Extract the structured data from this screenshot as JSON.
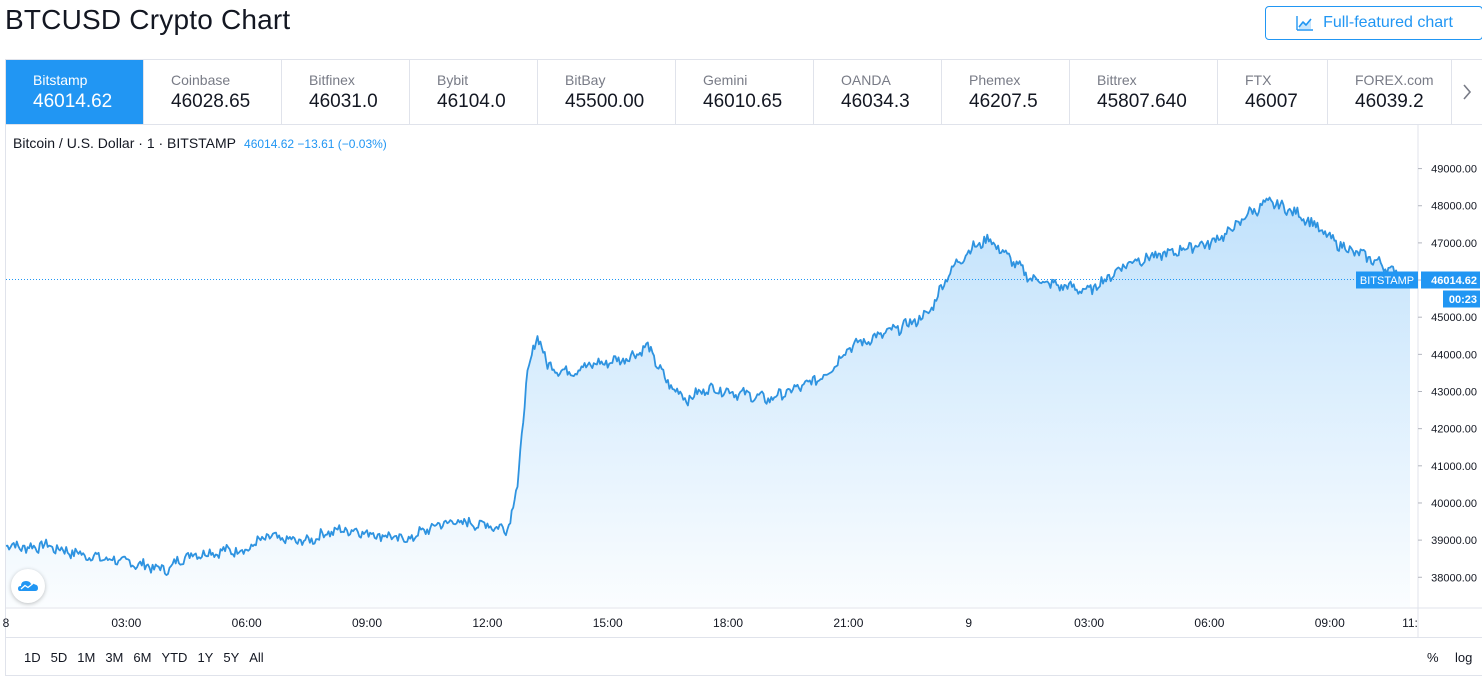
{
  "page": {
    "title": "BTCUSD Crypto Chart",
    "full_featured_label": "Full-featured chart"
  },
  "exchanges": [
    {
      "name": "Bitstamp",
      "price": "46014.62",
      "active": true
    },
    {
      "name": "Coinbase",
      "price": "46028.65"
    },
    {
      "name": "Bitfinex",
      "price": "46031.0"
    },
    {
      "name": "Bybit",
      "price": "46104.0"
    },
    {
      "name": "BitBay",
      "price": "45500.00"
    },
    {
      "name": "Gemini",
      "price": "46010.65"
    },
    {
      "name": "OANDA",
      "price": "46034.3"
    },
    {
      "name": "Phemex",
      "price": "46207.5"
    },
    {
      "name": "Bittrex",
      "price": "45807.640"
    },
    {
      "name": "FTX",
      "price": "46007"
    },
    {
      "name": "FOREX.com",
      "price": "46039.2"
    }
  ],
  "legend": {
    "symbol": "Bitcoin / U.S. Dollar · 1 · BITSTAMP",
    "values": "46014.62  −13.61 (−0.03%)"
  },
  "price_tag": {
    "exchange": "BITSTAMP",
    "price": "46014.62",
    "countdown": "00:23"
  },
  "range_buttons": [
    "1D",
    "5D",
    "1M",
    "3M",
    "6M",
    "YTD",
    "1Y",
    "5Y",
    "All"
  ],
  "scale_buttons": {
    "percent": "%",
    "log": "log"
  },
  "colors": {
    "accent": "#2196f3",
    "line": "#2e93e0",
    "grid": "#e0e3eb",
    "text": "#131722",
    "muted": "#787b86"
  },
  "icons": {
    "chart": "chart-line-icon",
    "next": "chevron-right-icon",
    "logo": "tradingview-cloud-icon"
  },
  "chart_data": {
    "type": "area",
    "xlabel": "",
    "ylabel": "",
    "x_ticks": [
      "8",
      "03:00",
      "06:00",
      "09:00",
      "12:00",
      "15:00",
      "18:00",
      "21:00",
      "9",
      "03:00",
      "06:00",
      "09:00",
      "11:"
    ],
    "y_ticks": [
      "38000.00",
      "39000.00",
      "40000.00",
      "41000.00",
      "42000.00",
      "43000.00",
      "44000.00",
      "45000.00",
      "46000.00",
      "47000.00",
      "48000.00",
      "49000.00"
    ],
    "ylim": [
      37200,
      49500
    ],
    "grid": false,
    "series": [
      {
        "x": [
          "8 00:00",
          "8 00:30",
          "8 01:00",
          "8 01:30",
          "8 02:00",
          "8 02:30",
          "8 03:00",
          "8 03:30",
          "8 04:00",
          "8 04:30",
          "8 05:00",
          "8 05:30",
          "8 06:00",
          "8 06:30",
          "8 07:00",
          "8 07:30",
          "8 08:00",
          "8 08:30",
          "8 09:00",
          "8 09:30",
          "8 10:00",
          "8 10:30",
          "8 11:00",
          "8 11:30",
          "8 12:00",
          "8 12:30",
          "8 12:45",
          "8 13:00",
          "8 13:15",
          "8 13:30",
          "8 14:00",
          "8 14:30",
          "8 15:00",
          "8 15:30",
          "8 16:00",
          "8 16:30",
          "8 17:00",
          "8 17:30",
          "8 18:00",
          "8 18:30",
          "8 19:00",
          "8 19:30",
          "8 20:00",
          "8 20:30",
          "8 21:00",
          "8 21:30",
          "8 22:00",
          "8 22:30",
          "8 23:00",
          "8 23:30",
          "9 00:00",
          "9 00:30",
          "9 01:00",
          "9 01:30",
          "9 02:00",
          "9 02:30",
          "9 03:00",
          "9 03:30",
          "9 04:00",
          "9 04:30",
          "9 05:00",
          "9 05:30",
          "9 06:00",
          "9 06:30",
          "9 07:00",
          "9 07:30",
          "9 08:00",
          "9 08:30",
          "9 09:00",
          "9 09:30",
          "9 10:00",
          "9 10:30",
          "9 11:00"
        ],
        "y": [
          38900,
          38800,
          38850,
          38700,
          38600,
          38500,
          38400,
          38300,
          38200,
          38600,
          38650,
          38700,
          38750,
          39100,
          39000,
          38950,
          39200,
          39300,
          39200,
          39100,
          39000,
          39300,
          39500,
          39450,
          39400,
          39300,
          40500,
          43500,
          44500,
          43700,
          43500,
          43700,
          43800,
          43900,
          44200,
          43200,
          42800,
          43100,
          43000,
          42900,
          42800,
          43000,
          43200,
          43500,
          44200,
          44400,
          44600,
          44800,
          45100,
          46200,
          46800,
          47100,
          46600,
          46100,
          45900,
          45800,
          45700,
          46100,
          46500,
          46600,
          46700,
          46900,
          47000,
          47300,
          47800,
          48100,
          47900,
          47600,
          47100,
          46800,
          46600,
          46300,
          46014.62
        ]
      }
    ]
  }
}
